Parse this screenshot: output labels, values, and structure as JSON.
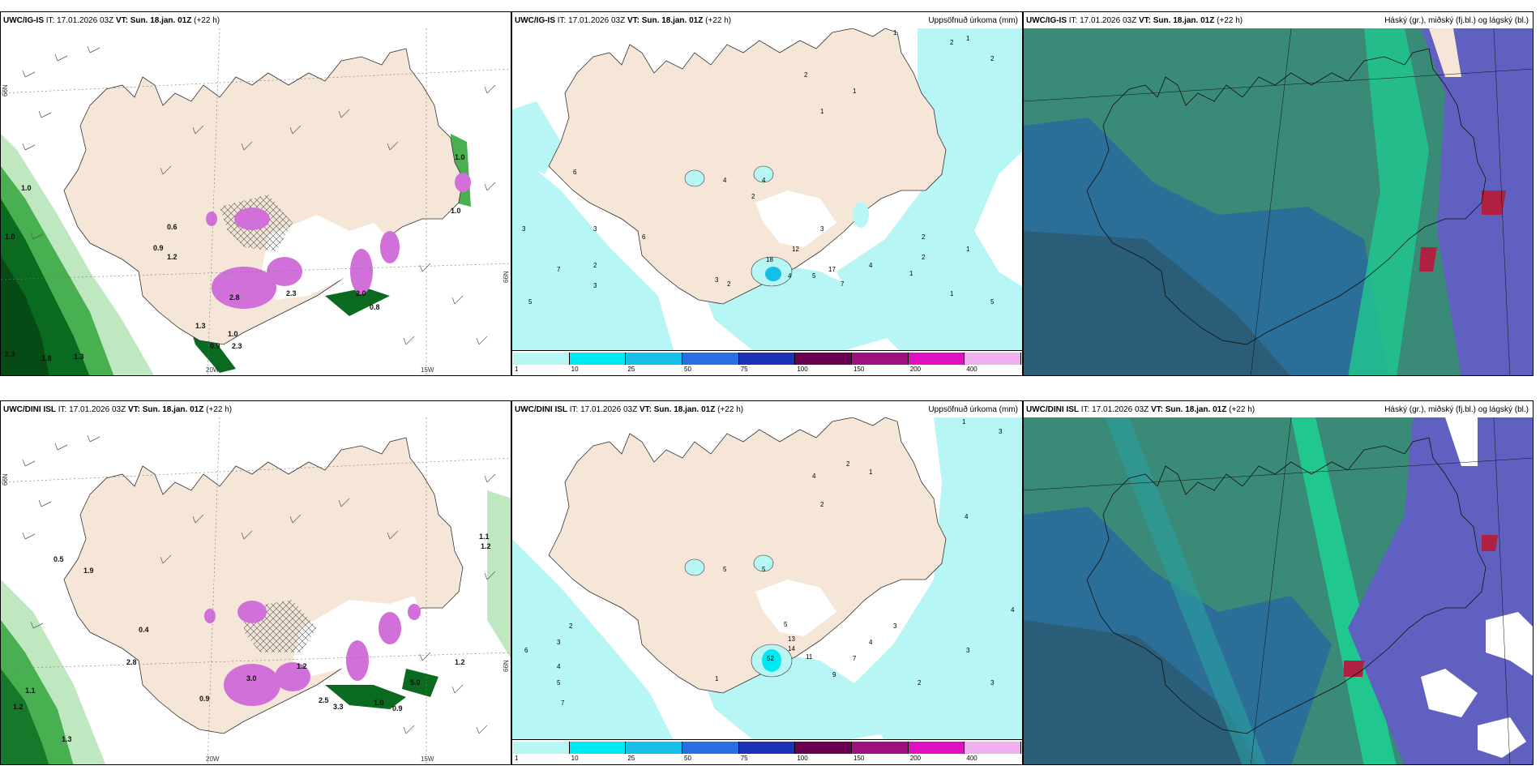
{
  "panels": [
    {
      "model": "UWC/IG-IS",
      "it": "IT: 17.01.2026 03Z",
      "vt_label": "VT:",
      "vt_value": "Sun. 18.jan. 01Z",
      "lead": "(+22 h)",
      "right_title": "",
      "type": "wind",
      "lat_labels": [
        "66N",
        "66N"
      ],
      "lon_labels": [
        "20W",
        "15W"
      ],
      "values": [
        "1.0",
        "1.0",
        "0.6",
        "0.9",
        "1.2",
        "2.3",
        "1.8",
        "1.3",
        "1.3",
        "2.8",
        "2.3",
        "2.0",
        "0.8",
        "1.0",
        "0.9",
        "1.0",
        "1.0",
        "2.3"
      ]
    },
    {
      "model": "UWC/IG-IS",
      "it": "IT: 17.01.2026 03Z",
      "vt_label": "VT:",
      "vt_value": "Sun. 18.jan. 01Z",
      "lead": "(+22 h)",
      "right_title": "Uppsöfnuð úrkoma (mm)",
      "type": "precip",
      "values": [
        "1",
        "2",
        "1",
        "2",
        "2",
        "1",
        "1",
        "3",
        "6",
        "4",
        "4",
        "2",
        "3",
        "6",
        "7",
        "2",
        "5",
        "3",
        "12",
        "18",
        "17",
        "3",
        "2",
        "4",
        "5",
        "7",
        "4",
        "3",
        "2",
        "1",
        "2",
        "1",
        "1",
        "5"
      ]
    },
    {
      "model": "UWC/IG-IS",
      "it": "IT: 17.01.2026 03Z",
      "vt_label": "VT:",
      "vt_value": "Sun. 18.jan. 01Z",
      "lead": "(+22 h)",
      "right_title": "Háský (gr.), miðský (fj.bl.) og lágský (bl.)",
      "type": "cloud"
    },
    {
      "model": "UWC/DINI ISL",
      "it": "IT: 17.01.2026 03Z",
      "vt_label": "VT:",
      "vt_value": "Sun. 18.jan. 01Z",
      "lead": "(+22 h)",
      "right_title": "",
      "type": "wind",
      "lat_labels": [
        "66N",
        "66N"
      ],
      "lon_labels": [
        "20W",
        "15W"
      ],
      "values": [
        "0.5",
        "1.9",
        "0.4",
        "1.1",
        "1.2",
        "2.8",
        "0.9",
        "3.0",
        "1.2",
        "2.5",
        "3.3",
        "1.0",
        "0.9",
        "5.0",
        "1.2",
        "1.1",
        "1.2",
        "1.3"
      ]
    },
    {
      "model": "UWC/DINI ISL",
      "it": "IT: 17.01.2026 03Z",
      "vt_label": "VT:",
      "vt_value": "Sun. 18.jan. 01Z",
      "lead": "(+22 h)",
      "right_title": "Uppsöfnuð úrkoma (mm)",
      "type": "precip",
      "values": [
        "1",
        "3",
        "2",
        "1",
        "4",
        "2",
        "5",
        "5",
        "4",
        "2",
        "3",
        "6",
        "4",
        "5",
        "7",
        "13",
        "14",
        "11",
        "52",
        "5",
        "7",
        "9",
        "4",
        "3",
        "3",
        "4",
        "2",
        "1",
        "3"
      ]
    },
    {
      "model": "UWC/DINI ISL",
      "it": "IT: 17.01.2026 03Z",
      "vt_label": "VT:",
      "vt_value": "Sun. 18.jan. 01Z",
      "lead": "(+22 h)",
      "right_title": "Háský (gr.), miðský (fj.bl.) og lágský (bl.)",
      "type": "cloud"
    }
  ],
  "colorbar": {
    "labels": [
      "1",
      "10",
      "25",
      "50",
      "75",
      "100",
      "150",
      "200",
      "400"
    ],
    "colors": [
      "#b8f6f6",
      "#00e8f0",
      "#14c0e8",
      "#2a6ee0",
      "#1c30b8",
      "#6a0050",
      "#a01080",
      "#e010c0",
      "#f0b0f0"
    ]
  },
  "colors": {
    "land": "#f5e6d8",
    "sea_wind": "#ffffff",
    "sea_precip": "#ffffff",
    "precip_light": "#b8f6f6",
    "green_dark": "#0a6a20",
    "green_mid": "#48b050",
    "green_light": "#bfe8c0",
    "magenta": "#d070d8",
    "cloud_green": "#3a8a78",
    "cloud_blue": "#2a6a9a",
    "cloud_purple": "#6060c0",
    "cloud_mint": "#20c890"
  }
}
